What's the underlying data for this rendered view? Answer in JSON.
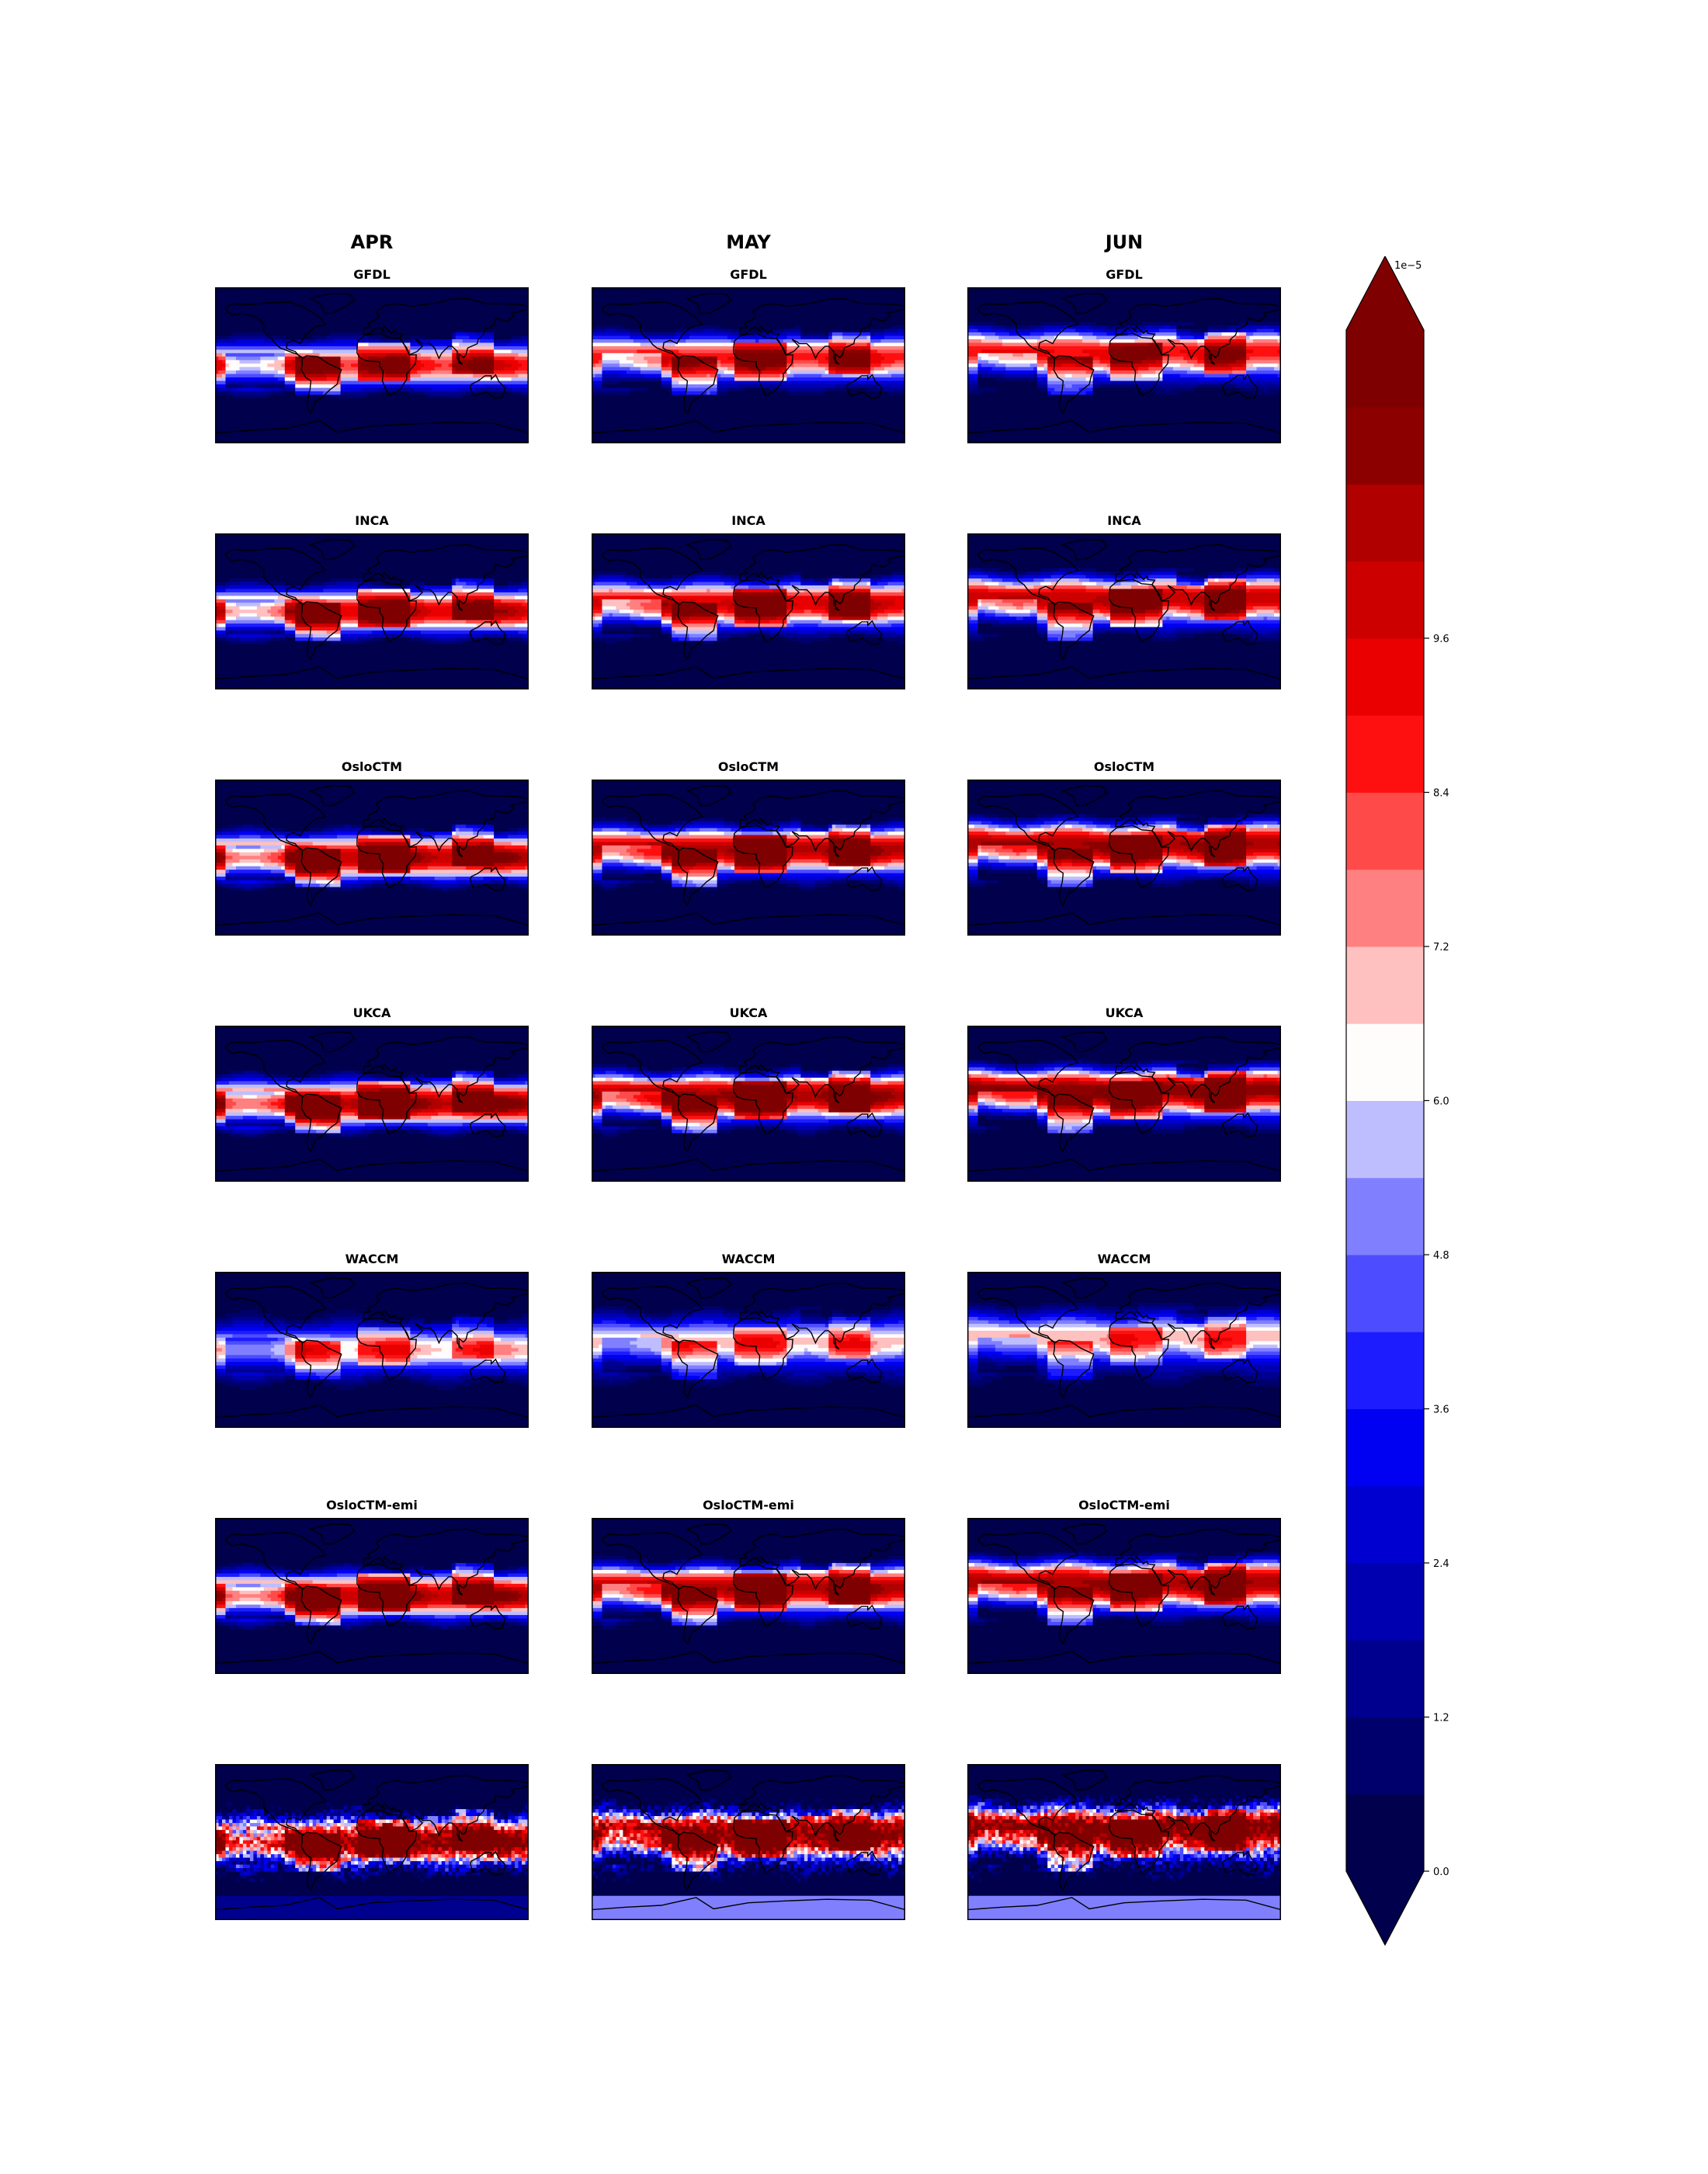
{
  "columns": [
    "APR",
    "MAY",
    "JUN"
  ],
  "rows": [
    {
      "label": "GFDL"
    },
    {
      "label": "INCA"
    },
    {
      "label": "OsloCTM"
    },
    {
      "label": "UKCA"
    },
    {
      "label": "WACCM"
    },
    {
      "label": "OsloCTM-emi"
    },
    {
      "label": ""
    }
  ],
  "colorbar": {
    "multiplier": "1e−5",
    "min": 0.0,
    "max": 10.4,
    "step": 0.6,
    "ticks": [
      "0.0",
      "1.2",
      "2.4",
      "3.6",
      "4.8",
      "6.0",
      "7.2",
      "8.4",
      "9.6"
    ],
    "extend": "both",
    "colormap": "seismic",
    "colors": [
      "#00004c",
      "#00006d",
      "#00008e",
      "#0000b0",
      "#0000d1",
      "#0000f2",
      "#1c1cff",
      "#4d4dff",
      "#8080ff",
      "#bebeff",
      "#fffcfc",
      "#ffc0c0",
      "#ff8080",
      "#ff4a4a",
      "#ff1010",
      "#ea0000",
      "#cd0000",
      "#b00000",
      "#8c0000",
      "#7f0000"
    ]
  }
}
